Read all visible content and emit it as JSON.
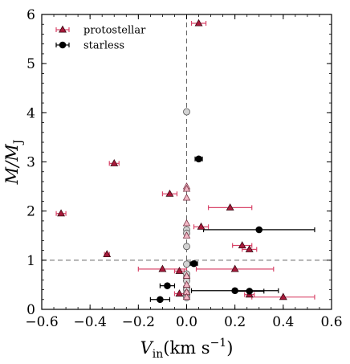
{
  "chart_data": {
    "type": "scatter",
    "xlabel": {
      "main": "V",
      "sub": "in",
      "unit": "(km s",
      "sup": "−1",
      "close": ")"
    },
    "ylabel": {
      "main": "M/M",
      "sub": "J"
    },
    "xlim": [
      -0.6,
      0.6
    ],
    "ylim": [
      0,
      6
    ],
    "xticks": [
      -0.6,
      -0.4,
      -0.2,
      0.0,
      0.2,
      0.4,
      0.6
    ],
    "xtick_labels": [
      "−0.6",
      "−0.4",
      "−0.2",
      "0.0",
      "0.2",
      "0.4",
      "0.6"
    ],
    "yticks": [
      0,
      1,
      2,
      3,
      4,
      5,
      6
    ],
    "ytick_labels": [
      "0",
      "1",
      "2",
      "3",
      "4",
      "5",
      "6"
    ],
    "reference_lines": {
      "vertical_x": 0.0,
      "horizontal_y": 1.0
    },
    "legend": {
      "position": "top-left",
      "entries": [
        {
          "label": "protostellar",
          "marker": "triangle",
          "color": "#a8193a",
          "errcolor": "#d9466a"
        },
        {
          "label": "starless",
          "marker": "circle",
          "color": "#000000",
          "errcolor": "#000000"
        }
      ]
    },
    "series": [
      {
        "name": "protostellar",
        "marker": "triangle",
        "points": [
          {
            "x": 0.05,
            "y": 5.82,
            "xerr": 0.03
          },
          {
            "x": -0.3,
            "y": 2.97,
            "xerr": 0.02
          },
          {
            "x": -0.07,
            "y": 2.35,
            "xerr": 0.03
          },
          {
            "x": 0.18,
            "y": 2.07,
            "xerr": 0.09
          },
          {
            "x": -0.52,
            "y": 1.95,
            "xerr": 0.02
          },
          {
            "x": 0.06,
            "y": 1.68,
            "xerr": 0.03
          },
          {
            "x": 0.23,
            "y": 1.3,
            "xerr": 0.04
          },
          {
            "x": 0.26,
            "y": 1.22,
            "xerr": 0.03
          },
          {
            "x": -0.33,
            "y": 1.12,
            "xerr": 0.01
          },
          {
            "x": -0.1,
            "y": 0.82,
            "xerr": 0.1
          },
          {
            "x": 0.2,
            "y": 0.82,
            "xerr": 0.16
          },
          {
            "x": -0.03,
            "y": 0.78,
            "xerr": 0.02
          },
          {
            "x": -0.03,
            "y": 0.32,
            "xerr": 0.02
          },
          {
            "x": 0.26,
            "y": 0.3,
            "xerr": 0.02
          },
          {
            "x": 0.4,
            "y": 0.25,
            "xerr": 0.13
          }
        ]
      },
      {
        "name": "starless",
        "marker": "circle",
        "points": [
          {
            "x": 0.05,
            "y": 3.06,
            "xerr": 0.015
          },
          {
            "x": 0.3,
            "y": 1.62,
            "xerr": 0.23
          },
          {
            "x": 0.03,
            "y": 0.93,
            "xerr": 0.015
          },
          {
            "x": -0.08,
            "y": 0.48,
            "xerr": 0.03
          },
          {
            "x": 0.2,
            "y": 0.38,
            "xerr": 0.18
          },
          {
            "x": 0.26,
            "y": 0.37,
            "xerr": 0.06
          },
          {
            "x": -0.11,
            "y": 0.2,
            "xerr": 0.04
          }
        ]
      },
      {
        "marker": "circle-light",
        "points": [
          {
            "x": 0.0,
            "y": 4.02
          },
          {
            "x": 0.0,
            "y": 1.62
          },
          {
            "x": 0.0,
            "y": 1.55
          },
          {
            "x": 0.0,
            "y": 1.28
          },
          {
            "x": 0.0,
            "y": 0.92
          },
          {
            "x": 0.0,
            "y": 0.72
          },
          {
            "x": 0.0,
            "y": 0.65
          },
          {
            "x": 0.0,
            "y": 0.58
          },
          {
            "x": 0.0,
            "y": 0.45
          },
          {
            "x": 0.0,
            "y": 0.4
          },
          {
            "x": 0.0,
            "y": 0.33
          },
          {
            "x": 0.0,
            "y": 0.28
          },
          {
            "x": 0.0,
            "y": 0.24
          }
        ]
      },
      {
        "marker": "triangle-light",
        "points": [
          {
            "x": 0.0,
            "y": 2.5
          },
          {
            "x": 0.0,
            "y": 2.45
          },
          {
            "x": 0.0,
            "y": 2.27
          },
          {
            "x": 0.0,
            "y": 1.75
          },
          {
            "x": 0.0,
            "y": 1.5
          },
          {
            "x": 0.0,
            "y": 0.68
          },
          {
            "x": 0.0,
            "y": 0.5
          },
          {
            "x": 0.0,
            "y": 0.35
          },
          {
            "x": 0.0,
            "y": 0.25
          }
        ]
      }
    ]
  }
}
